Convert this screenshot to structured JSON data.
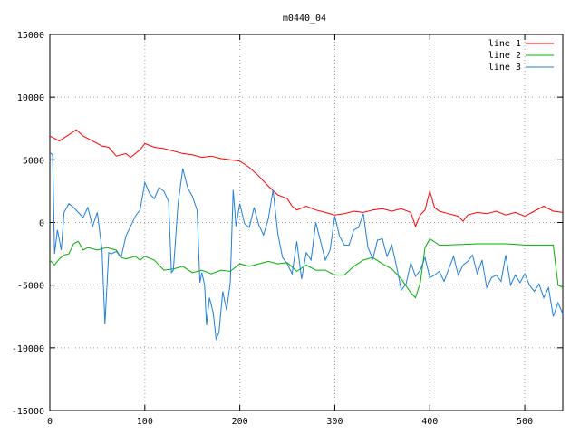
{
  "chart_data": {
    "type": "line",
    "title": "m0440_04",
    "xlabel": "",
    "ylabel": "",
    "xlim": [
      0,
      540
    ],
    "ylim": [
      -15000,
      15000
    ],
    "xticks": [
      0,
      100,
      200,
      300,
      400,
      500
    ],
    "yticks": [
      -15000,
      -10000,
      -5000,
      0,
      5000,
      10000,
      15000
    ],
    "grid": true,
    "legend_position": "top-right",
    "series": [
      {
        "name": "line 1",
        "color": "#ff0000",
        "points": [
          [
            0,
            6900
          ],
          [
            10,
            6500
          ],
          [
            20,
            7000
          ],
          [
            28,
            7400
          ],
          [
            35,
            6900
          ],
          [
            45,
            6500
          ],
          [
            55,
            6100
          ],
          [
            62,
            6000
          ],
          [
            70,
            5300
          ],
          [
            80,
            5500
          ],
          [
            85,
            5200
          ],
          [
            95,
            5800
          ],
          [
            100,
            6300
          ],
          [
            110,
            6000
          ],
          [
            120,
            5900
          ],
          [
            130,
            5700
          ],
          [
            140,
            5500
          ],
          [
            150,
            5400
          ],
          [
            160,
            5200
          ],
          [
            170,
            5300
          ],
          [
            180,
            5100
          ],
          [
            190,
            5000
          ],
          [
            200,
            4900
          ],
          [
            210,
            4400
          ],
          [
            220,
            3700
          ],
          [
            230,
            2900
          ],
          [
            240,
            2200
          ],
          [
            250,
            1900
          ],
          [
            255,
            1300
          ],
          [
            260,
            1000
          ],
          [
            270,
            1300
          ],
          [
            280,
            1000
          ],
          [
            290,
            800
          ],
          [
            300,
            600
          ],
          [
            310,
            700
          ],
          [
            320,
            900
          ],
          [
            330,
            800
          ],
          [
            340,
            1000
          ],
          [
            350,
            1100
          ],
          [
            360,
            900
          ],
          [
            370,
            1100
          ],
          [
            380,
            800
          ],
          [
            385,
            -300
          ],
          [
            390,
            600
          ],
          [
            395,
            1000
          ],
          [
            400,
            2500
          ],
          [
            405,
            1200
          ],
          [
            410,
            900
          ],
          [
            420,
            700
          ],
          [
            430,
            500
          ],
          [
            435,
            100
          ],
          [
            440,
            600
          ],
          [
            450,
            800
          ],
          [
            460,
            700
          ],
          [
            470,
            900
          ],
          [
            480,
            600
          ],
          [
            490,
            800
          ],
          [
            500,
            500
          ],
          [
            510,
            900
          ],
          [
            520,
            1300
          ],
          [
            530,
            900
          ],
          [
            540,
            800
          ]
        ]
      },
      {
        "name": "line 2",
        "color": "#00b000",
        "points": [
          [
            0,
            -3000
          ],
          [
            5,
            -3400
          ],
          [
            10,
            -2900
          ],
          [
            15,
            -2600
          ],
          [
            20,
            -2500
          ],
          [
            25,
            -1700
          ],
          [
            30,
            -1500
          ],
          [
            35,
            -2200
          ],
          [
            40,
            -2000
          ],
          [
            50,
            -2200
          ],
          [
            60,
            -2000
          ],
          [
            70,
            -2200
          ],
          [
            75,
            -2800
          ],
          [
            80,
            -2900
          ],
          [
            90,
            -2700
          ],
          [
            95,
            -3000
          ],
          [
            100,
            -2700
          ],
          [
            110,
            -3000
          ],
          [
            120,
            -3800
          ],
          [
            130,
            -3700
          ],
          [
            140,
            -3500
          ],
          [
            150,
            -4000
          ],
          [
            160,
            -3800
          ],
          [
            170,
            -4100
          ],
          [
            180,
            -3800
          ],
          [
            190,
            -3900
          ],
          [
            200,
            -3300
          ],
          [
            210,
            -3500
          ],
          [
            220,
            -3300
          ],
          [
            230,
            -3100
          ],
          [
            240,
            -3300
          ],
          [
            250,
            -3200
          ],
          [
            260,
            -3900
          ],
          [
            270,
            -3400
          ],
          [
            280,
            -3800
          ],
          [
            290,
            -3800
          ],
          [
            300,
            -4200
          ],
          [
            310,
            -4200
          ],
          [
            320,
            -3500
          ],
          [
            330,
            -3000
          ],
          [
            340,
            -2800
          ],
          [
            350,
            -3300
          ],
          [
            360,
            -3700
          ],
          [
            370,
            -4500
          ],
          [
            380,
            -5600
          ],
          [
            385,
            -6000
          ],
          [
            390,
            -4800
          ],
          [
            395,
            -2000
          ],
          [
            400,
            -1300
          ],
          [
            410,
            -1800
          ],
          [
            420,
            -1800
          ],
          [
            450,
            -1700
          ],
          [
            480,
            -1700
          ],
          [
            500,
            -1800
          ],
          [
            520,
            -1800
          ],
          [
            530,
            -1800
          ],
          [
            535,
            -5000
          ],
          [
            540,
            -5200
          ]
        ]
      },
      {
        "name": "line 3",
        "color": "#1f7fd8",
        "points": [
          [
            0,
            5600
          ],
          [
            3,
            5400
          ],
          [
            5,
            -2500
          ],
          [
            8,
            -600
          ],
          [
            12,
            -2200
          ],
          [
            15,
            800
          ],
          [
            20,
            1500
          ],
          [
            25,
            1200
          ],
          [
            30,
            800
          ],
          [
            35,
            400
          ],
          [
            40,
            1200
          ],
          [
            45,
            -300
          ],
          [
            50,
            800
          ],
          [
            55,
            -2200
          ],
          [
            58,
            -8100
          ],
          [
            62,
            -2400
          ],
          [
            65,
            -2500
          ],
          [
            70,
            -2300
          ],
          [
            75,
            -2800
          ],
          [
            80,
            -1100
          ],
          [
            85,
            -300
          ],
          [
            90,
            500
          ],
          [
            95,
            1000
          ],
          [
            100,
            3200
          ],
          [
            105,
            2300
          ],
          [
            110,
            1900
          ],
          [
            115,
            2800
          ],
          [
            120,
            2500
          ],
          [
            125,
            1700
          ],
          [
            128,
            -4000
          ],
          [
            130,
            -3800
          ],
          [
            135,
            1500
          ],
          [
            140,
            4300
          ],
          [
            145,
            2800
          ],
          [
            150,
            2100
          ],
          [
            155,
            1000
          ],
          [
            158,
            -4800
          ],
          [
            160,
            -4000
          ],
          [
            163,
            -5000
          ],
          [
            165,
            -8200
          ],
          [
            168,
            -6000
          ],
          [
            172,
            -7200
          ],
          [
            175,
            -9300
          ],
          [
            178,
            -8800
          ],
          [
            182,
            -5500
          ],
          [
            186,
            -7000
          ],
          [
            190,
            -4800
          ],
          [
            193,
            2600
          ],
          [
            196,
            -300
          ],
          [
            200,
            1500
          ],
          [
            205,
            -100
          ],
          [
            210,
            -400
          ],
          [
            215,
            1200
          ],
          [
            220,
            -200
          ],
          [
            225,
            -1000
          ],
          [
            230,
            300
          ],
          [
            235,
            2600
          ],
          [
            240,
            -900
          ],
          [
            245,
            -2800
          ],
          [
            250,
            -3300
          ],
          [
            255,
            -4100
          ],
          [
            260,
            -1500
          ],
          [
            265,
            -4500
          ],
          [
            270,
            -2400
          ],
          [
            275,
            -3000
          ],
          [
            280,
            0
          ],
          [
            285,
            -1500
          ],
          [
            290,
            -3000
          ],
          [
            295,
            -2200
          ],
          [
            300,
            500
          ],
          [
            305,
            -1100
          ],
          [
            310,
            -1800
          ],
          [
            315,
            -1800
          ],
          [
            320,
            -600
          ],
          [
            325,
            -400
          ],
          [
            330,
            700
          ],
          [
            335,
            -2000
          ],
          [
            340,
            -2900
          ],
          [
            345,
            -1400
          ],
          [
            350,
            -1300
          ],
          [
            355,
            -2700
          ],
          [
            360,
            -1800
          ],
          [
            365,
            -3500
          ],
          [
            370,
            -5400
          ],
          [
            375,
            -4900
          ],
          [
            380,
            -3200
          ],
          [
            385,
            -4300
          ],
          [
            390,
            -3800
          ],
          [
            395,
            -2800
          ],
          [
            400,
            -4400
          ],
          [
            405,
            -4200
          ],
          [
            410,
            -3900
          ],
          [
            415,
            -4700
          ],
          [
            420,
            -3700
          ],
          [
            425,
            -2700
          ],
          [
            430,
            -4200
          ],
          [
            435,
            -3400
          ],
          [
            440,
            -3100
          ],
          [
            445,
            -2600
          ],
          [
            450,
            -4100
          ],
          [
            455,
            -3000
          ],
          [
            460,
            -5200
          ],
          [
            465,
            -4400
          ],
          [
            470,
            -4200
          ],
          [
            475,
            -4700
          ],
          [
            480,
            -2600
          ],
          [
            485,
            -5000
          ],
          [
            490,
            -4200
          ],
          [
            495,
            -4800
          ],
          [
            500,
            -4100
          ],
          [
            505,
            -5000
          ],
          [
            510,
            -5500
          ],
          [
            515,
            -4900
          ],
          [
            520,
            -6000
          ],
          [
            525,
            -5200
          ],
          [
            530,
            -7500
          ],
          [
            535,
            -6400
          ],
          [
            540,
            -7300
          ]
        ]
      }
    ]
  }
}
